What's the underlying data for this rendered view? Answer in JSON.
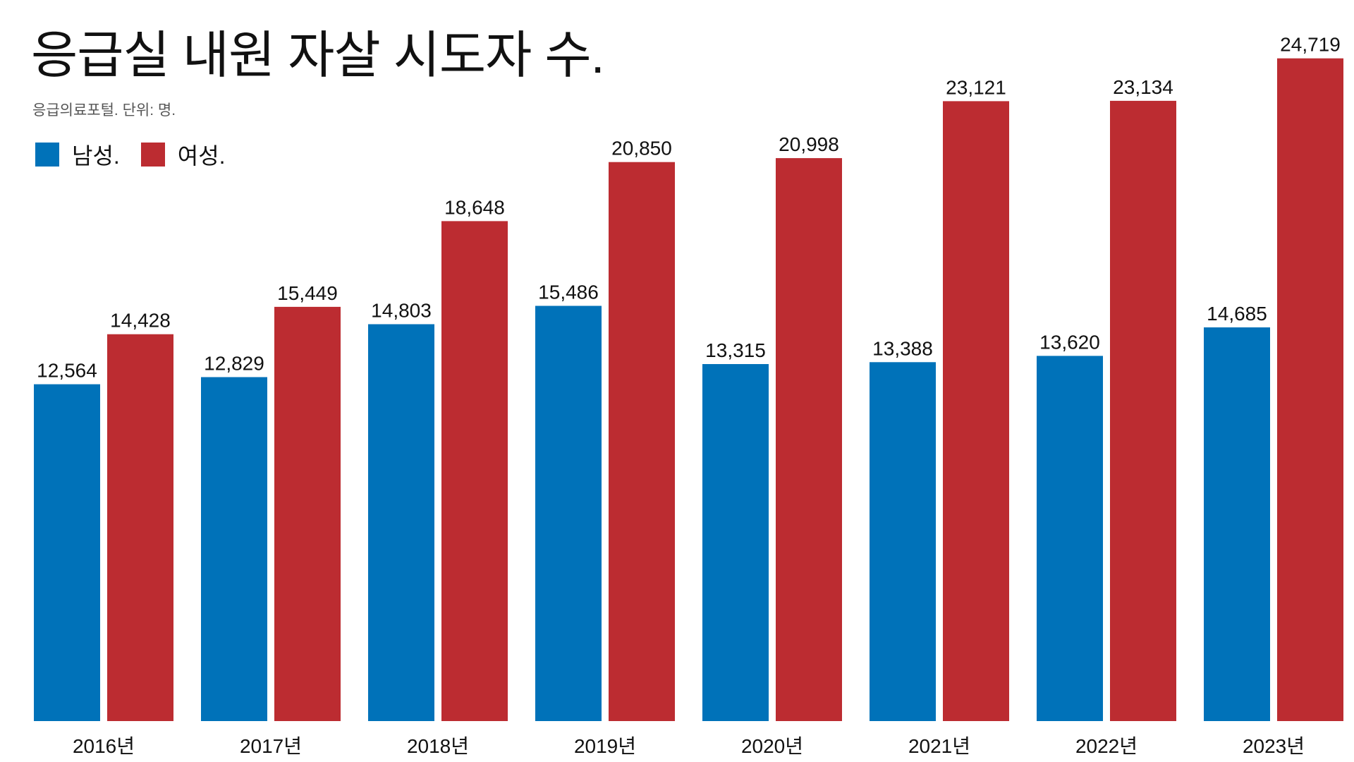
{
  "chart_data": {
    "type": "bar",
    "title": "응급실 내원 자살 시도자 수.",
    "subtitle": "응급의료포털. 단위: 명.",
    "categories": [
      "2016년",
      "2017년",
      "2018년",
      "2019년",
      "2020년",
      "2021년",
      "2022년",
      "2023년"
    ],
    "series": [
      {
        "name": "남성.",
        "color": "#0072b9",
        "values": [
          12564,
          12829,
          14803,
          15486,
          13315,
          13388,
          13620,
          14685
        ],
        "labels": [
          "12,564",
          "12,829",
          "14,803",
          "15,486",
          "13,315",
          "13,388",
          "13,620",
          "14,685"
        ]
      },
      {
        "name": "여성.",
        "color": "#bc2c31",
        "values": [
          14428,
          15449,
          18648,
          20850,
          20998,
          23121,
          23134,
          24719
        ],
        "labels": [
          "14,428",
          "15,449",
          "18,648",
          "20,850",
          "20,998",
          "23,121",
          "23,134",
          "24,719"
        ]
      }
    ],
    "ylim": [
      0,
      25000
    ],
    "grid": false,
    "legend": "top-left",
    "xlabel": "",
    "ylabel": ""
  }
}
